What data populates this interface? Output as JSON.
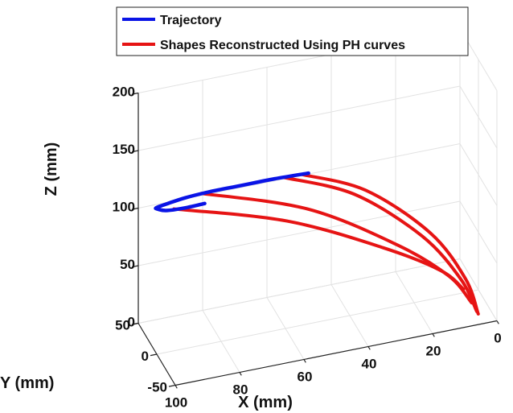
{
  "chart_data": {
    "type": "line",
    "projection": "3d",
    "xlabel": "X (mm)",
    "ylabel": "Y (mm)",
    "zlabel": "Z (mm)",
    "xticks": [
      "100",
      "80",
      "60",
      "40",
      "20",
      "0"
    ],
    "yticks": [
      "-50",
      "0",
      "50"
    ],
    "zticks": [
      "0",
      "50",
      "100",
      "150",
      "200"
    ],
    "xlim": [
      0,
      100
    ],
    "ylim": [
      -50,
      50
    ],
    "zlim": [
      0,
      200
    ],
    "grid": true,
    "legend": "top-left",
    "series": [
      {
        "name": "Trajectory",
        "color": "#0a14e6",
        "points": [
          [
            85,
            1,
            122
          ],
          [
            92,
            -3,
            124
          ],
          [
            98,
            -8,
            128
          ],
          [
            101,
            -12,
            133
          ],
          [
            102,
            -16,
            137
          ],
          [
            99,
            -20,
            141
          ],
          [
            94,
            -25,
            146
          ],
          [
            87,
            -30,
            150
          ],
          [
            78,
            -35,
            153
          ],
          [
            68,
            -40,
            156
          ],
          [
            58,
            -45,
            158
          ]
        ]
      },
      {
        "name": "Shapes Reconstructed Using PH curves",
        "color": "#e61414",
        "curves": [
          [
            [
              95,
              -3,
              125
            ],
            [
              60,
              -3,
              95
            ],
            [
              30,
              -3,
              55
            ],
            [
              12,
              -3,
              25
            ],
            [
              5,
              -3,
              5
            ]
          ],
          [
            [
              89,
              -25,
              147
            ],
            [
              56,
              -25,
              115
            ],
            [
              28,
              -25,
              68
            ],
            [
              12,
              -25,
              32
            ],
            [
              5,
              -25,
              5
            ]
          ],
          [
            [
              65,
              -39,
              155
            ],
            [
              43,
              -39,
              128
            ],
            [
              22,
              -39,
              80
            ],
            [
              10,
              -39,
              36
            ],
            [
              5,
              -39,
              5
            ]
          ],
          [
            [
              60,
              -43,
              157
            ],
            [
              40,
              -43,
              132
            ],
            [
              20,
              -43,
              84
            ],
            [
              9,
              -43,
              38
            ],
            [
              5,
              -43,
              5
            ]
          ]
        ]
      }
    ]
  }
}
